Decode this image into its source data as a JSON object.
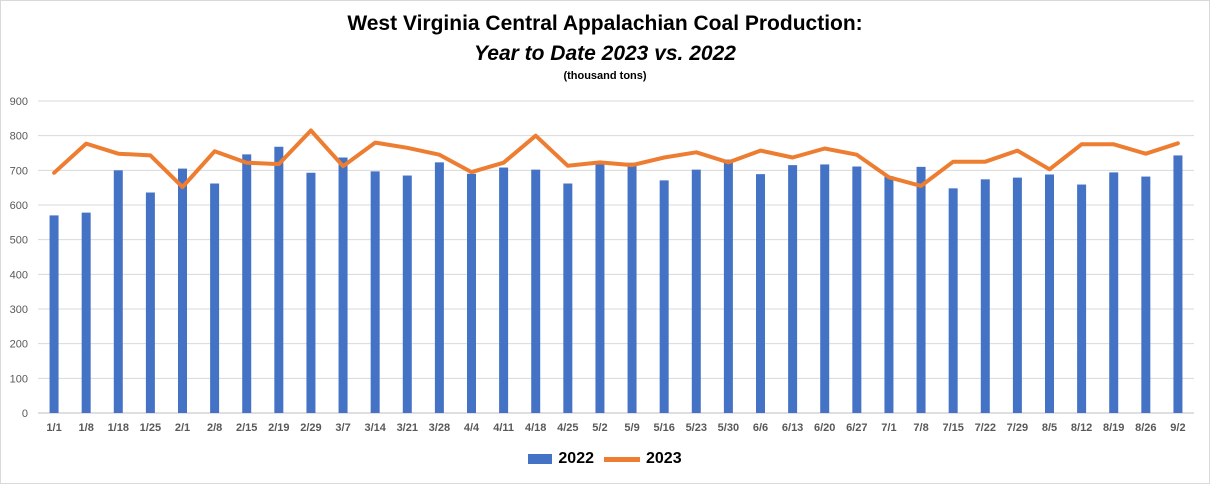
{
  "chart_data": {
    "type": "bar+line",
    "title": "West Virginia Central Appalachian Coal Production:",
    "subtitle": "Year to Date 2023 vs. 2022",
    "units": "(thousand tons)",
    "categories": [
      "1/1",
      "1/8",
      "1/18",
      "1/25",
      "2/1",
      "2/8",
      "2/15",
      "2/19",
      "2/29",
      "3/7",
      "3/14",
      "3/21",
      "3/28",
      "4/4",
      "4/11",
      "4/18",
      "4/25",
      "5/2",
      "5/9",
      "5/16",
      "5/23",
      "5/30",
      "6/6",
      "6/13",
      "6/20",
      "6/27",
      "7/1",
      "7/8",
      "7/15",
      "7/22",
      "7/29",
      "8/5",
      "8/12",
      "8/19",
      "8/26",
      "9/2"
    ],
    "ylim": [
      0,
      900
    ],
    "yticks": [
      0,
      100,
      200,
      300,
      400,
      500,
      600,
      700,
      800,
      900
    ],
    "grid": true,
    "legend_position": "bottom",
    "series": [
      {
        "name": "2022",
        "type": "bar",
        "color": "#4472C4",
        "values": [
          570,
          578,
          700,
          636,
          705,
          662,
          746,
          768,
          693,
          737,
          697,
          685,
          723,
          690,
          708,
          702,
          662,
          720,
          722,
          671,
          702,
          731,
          689,
          715,
          717,
          711,
          683,
          710,
          648,
          674,
          679,
          688,
          659,
          694,
          682,
          743
        ]
      },
      {
        "name": "2023",
        "type": "line",
        "color": "#ED7D31",
        "values": [
          693,
          777,
          748,
          743,
          652,
          755,
          722,
          718,
          815,
          712,
          780,
          765,
          745,
          695,
          722,
          800,
          713,
          723,
          715,
          737,
          752,
          723,
          757,
          737,
          763,
          745,
          680,
          655,
          725,
          725,
          757,
          703,
          775,
          775,
          748,
          778
        ]
      }
    ]
  }
}
